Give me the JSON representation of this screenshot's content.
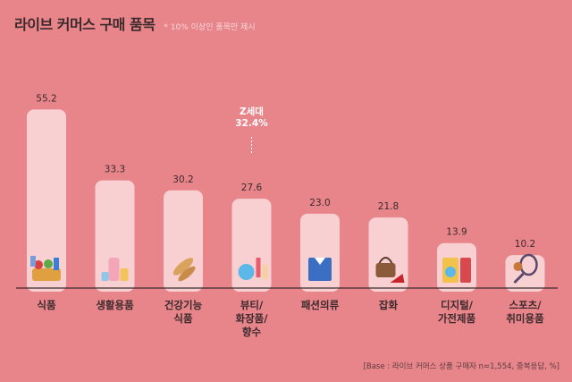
{
  "title": "라이브 커머스 구매 품목",
  "subtitle": "* 10% 이상인 품목만 제시",
  "footnote": "[Base : 라이브 커머스 상품 구매자 n=1,554, 중복응답, %]",
  "chart_data": {
    "type": "bar",
    "categories": [
      [
        "식품"
      ],
      [
        "생활용품"
      ],
      [
        "건강기능",
        "식품"
      ],
      [
        "뷰티/",
        "화장품/",
        "향수"
      ],
      [
        "패션의류"
      ],
      [
        "잡화"
      ],
      [
        "디지털/",
        "가전제품"
      ],
      [
        "스포츠/",
        "취미용품"
      ]
    ],
    "values": [
      55.2,
      33.3,
      30.2,
      27.6,
      23.0,
      21.8,
      13.9,
      10.2
    ],
    "value_labels": [
      "55.2",
      "33.3",
      "30.2",
      "27.6",
      "23.0",
      "21.8",
      "13.9",
      "10.2"
    ],
    "ylim": [
      0,
      60
    ],
    "annotation": {
      "category_index": 3,
      "lines": [
        "Z세대",
        "32.4%"
      ]
    },
    "icons": [
      "food-basket-icon",
      "household-bottles-icon",
      "supplement-capsules-icon",
      "cosmetics-icon",
      "folded-shirt-icon",
      "handbag-heels-icon",
      "appliance-icon",
      "sports-racket-icon"
    ]
  },
  "colors": {
    "background": "#E8858A",
    "bar": "#F8D0D2",
    "baseline": "#3A2A2C",
    "text": "#3B2A2C",
    "annotation": "#FFFFFF"
  }
}
